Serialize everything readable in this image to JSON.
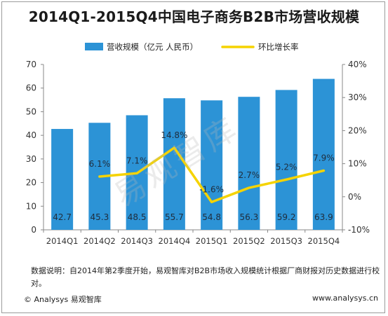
{
  "title": "2014Q1-2015Q4中国电子商务B2B市场营收规模",
  "watermark": "易观智库",
  "chart_data": {
    "type": "bar",
    "categories": [
      "2014Q1",
      "2014Q2",
      "2014Q3",
      "2014Q4",
      "2015Q1",
      "2015Q2",
      "2015Q3",
      "2015Q4"
    ],
    "series": [
      {
        "name": "营收规模（亿元 人民币）",
        "type": "bar",
        "values": [
          42.7,
          45.3,
          48.5,
          55.7,
          54.8,
          56.3,
          59.2,
          63.9
        ],
        "value_labels": [
          "42.7",
          "45.3",
          "48.5",
          "55.7",
          "54.8",
          "56.3",
          "59.2",
          "63.9"
        ]
      },
      {
        "name": "环比增长率",
        "type": "line",
        "axis": "right",
        "values": [
          null,
          6.1,
          7.1,
          14.8,
          -1.6,
          2.7,
          5.2,
          7.9
        ],
        "value_labels": [
          "",
          "6.1%",
          "7.1%",
          "14.8%",
          "-1.6%",
          "2.7%",
          "5.2%",
          "7.9%"
        ]
      }
    ],
    "ylim": [
      0,
      70
    ],
    "yticks": [
      "0",
      "10",
      "20",
      "30",
      "40",
      "50",
      "60",
      "70"
    ],
    "y2lim": [
      -10,
      40
    ],
    "y2ticks": [
      "-10%",
      "0%",
      "10%",
      "20%",
      "30%",
      "40%"
    ],
    "legend_position": "top-center",
    "colors": {
      "bar": "#2c93d6",
      "line": "#f5d300",
      "bar_label": "#1f2d3d",
      "axis": "#888888"
    }
  },
  "footer": {
    "note": "数据说明：自2014年第2季度开始，易观智库对B2B市场收入规模统计根据厂商财报对历史数据进行校对。",
    "copyright": "© Analysys 易观智库",
    "website": "www.analysys.cn"
  }
}
